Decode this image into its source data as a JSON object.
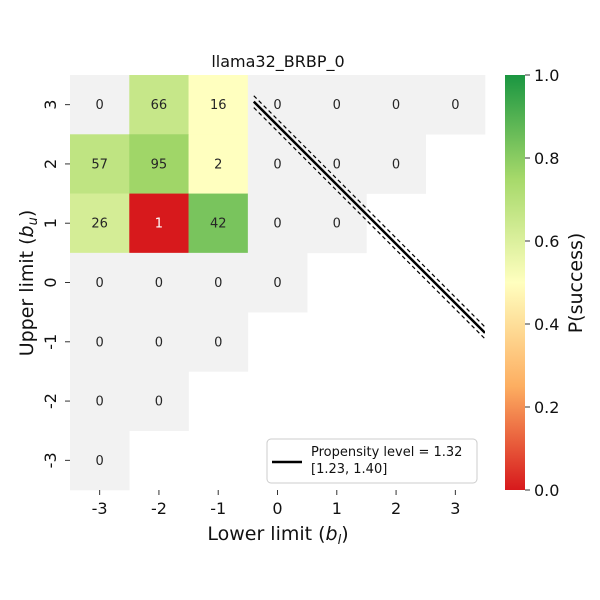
{
  "chart_data": {
    "type": "heatmap",
    "title": "llama32_BRBP_0",
    "xlabel": "Lower limit (b_l)",
    "ylabel": "Upper limit (b_u)",
    "x_ticks": [
      "-3",
      "-2",
      "-1",
      "0",
      "1",
      "2",
      "3"
    ],
    "y_ticks": [
      "3",
      "2",
      "1",
      "0",
      "-1",
      "-2",
      "-3"
    ],
    "cells": [
      {
        "x": -3,
        "y": 3,
        "label": "0",
        "p": null
      },
      {
        "x": -2,
        "y": 3,
        "label": "66",
        "p": 0.66
      },
      {
        "x": -1,
        "y": 3,
        "label": "16",
        "p": 0.5
      },
      {
        "x": 0,
        "y": 3,
        "label": "0",
        "p": null
      },
      {
        "x": 1,
        "y": 3,
        "label": "0",
        "p": null
      },
      {
        "x": 2,
        "y": 3,
        "label": "0",
        "p": null
      },
      {
        "x": 3,
        "y": 3,
        "label": "0",
        "p": null
      },
      {
        "x": -3,
        "y": 2,
        "label": "57",
        "p": 0.68
      },
      {
        "x": -2,
        "y": 2,
        "label": "95",
        "p": 0.76
      },
      {
        "x": -1,
        "y": 2,
        "label": "2",
        "p": 0.5
      },
      {
        "x": 0,
        "y": 2,
        "label": "0",
        "p": null
      },
      {
        "x": 1,
        "y": 2,
        "label": "0",
        "p": null
      },
      {
        "x": 2,
        "y": 2,
        "label": "0",
        "p": null
      },
      {
        "x": -3,
        "y": 1,
        "label": "26",
        "p": 0.62
      },
      {
        "x": -2,
        "y": 1,
        "label": "1",
        "p": 0.0
      },
      {
        "x": -1,
        "y": 1,
        "label": "42",
        "p": 0.83
      },
      {
        "x": 0,
        "y": 1,
        "label": "0",
        "p": null
      },
      {
        "x": 1,
        "y": 1,
        "label": "0",
        "p": null
      },
      {
        "x": -3,
        "y": 0,
        "label": "0",
        "p": null
      },
      {
        "x": -2,
        "y": 0,
        "label": "0",
        "p": null
      },
      {
        "x": -1,
        "y": 0,
        "label": "0",
        "p": null
      },
      {
        "x": 0,
        "y": 0,
        "label": "0",
        "p": null
      },
      {
        "x": -3,
        "y": -1,
        "label": "0",
        "p": null
      },
      {
        "x": -2,
        "y": -1,
        "label": "0",
        "p": null
      },
      {
        "x": -1,
        "y": -1,
        "label": "0",
        "p": null
      },
      {
        "x": -3,
        "y": -2,
        "label": "0",
        "p": null
      },
      {
        "x": -2,
        "y": -2,
        "label": "0",
        "p": null
      },
      {
        "x": -3,
        "y": -3,
        "label": "0",
        "p": null
      }
    ],
    "propensity_line": {
      "label": "Propensity level = 1.32",
      "ci_label": "[1.23, 1.40]",
      "points": [
        [
          -0.4,
          3.05
        ],
        [
          3.5,
          -0.85
        ]
      ],
      "ci_offset": 0.1
    },
    "colorbar": {
      "label": "P(success)",
      "range": [
        0.0,
        1.0
      ],
      "ticks": [
        "0.0",
        "0.2",
        "0.4",
        "0.6",
        "0.8",
        "1.0"
      ],
      "colors": [
        "#d7191c",
        "#fdae61",
        "#ffffbf",
        "#a6d96a",
        "#1a9641"
      ]
    },
    "empty_cell_color": "#f2f2f2",
    "legend_position": "lower-right"
  }
}
